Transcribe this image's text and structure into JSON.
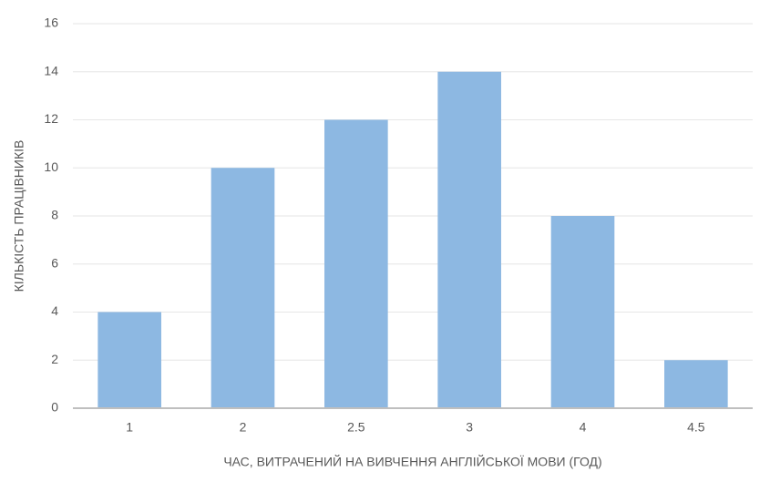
{
  "chart_data": {
    "type": "bar",
    "categories": [
      "1",
      "2",
      "2.5",
      "3",
      "4",
      "4.5"
    ],
    "values": [
      4,
      10,
      12,
      14,
      8,
      2
    ],
    "color": "#8db8e2",
    "xlabel": "ЧАС, ВИТРАЧЕНИЙ НА ВИВЧЕННЯ АНГЛІЙСЬКОЇ МОВИ (ГОД)",
    "ylabel": "КІЛЬКІСТЬ ПРАЦІВНИКІВ",
    "ylim": [
      0,
      16
    ],
    "yticks": [
      0,
      2,
      4,
      6,
      8,
      10,
      12,
      14,
      16
    ],
    "grid": true
  }
}
